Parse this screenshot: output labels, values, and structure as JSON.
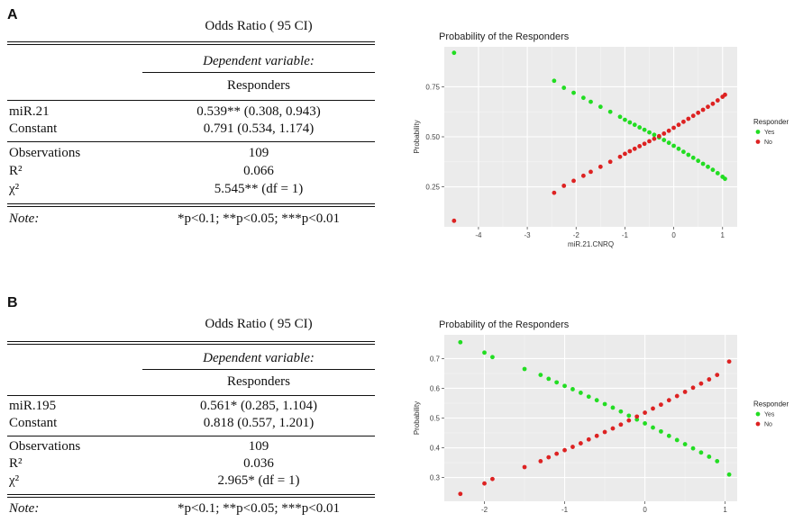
{
  "panels": [
    {
      "label": "A",
      "table": {
        "title": "Odds Ratio ( 95 CI)",
        "dependent_label": "Dependent variable:",
        "dependent_name": "Responders",
        "rows": [
          {
            "label": "miR.21",
            "value": "0.539** (0.308, 0.943)"
          },
          {
            "label": "Constant",
            "value": "0.791 (0.534, 1.174)"
          },
          {
            "label": "Observations",
            "value": "109"
          },
          {
            "label": "R²",
            "value": "0.066"
          },
          {
            "label": "χ²",
            "value": "5.545** (df = 1)"
          }
        ],
        "note_label": "Note:",
        "note_text": "*p<0.1; **p<0.05; ***p<0.01"
      }
    },
    {
      "label": "B",
      "table": {
        "title": "Odds Ratio ( 95 CI)",
        "dependent_label": "Dependent variable:",
        "dependent_name": "Responders",
        "rows": [
          {
            "label": "miR.195",
            "value": "0.561* (0.285, 1.104)"
          },
          {
            "label": "Constant",
            "value": "0.818 (0.557, 1.201)"
          },
          {
            "label": "Observations",
            "value": "109"
          },
          {
            "label": "R²",
            "value": "0.036"
          },
          {
            "label": "χ²",
            "value": "2.965* (df = 1)"
          }
        ],
        "note_label": "Note:",
        "note_text": "*p<0.1; **p<0.05; ***p<0.01"
      }
    }
  ],
  "chart_data": [
    {
      "type": "scatter",
      "title": "Probability of the Responders",
      "xlabel": "miR.21.CNRQ",
      "ylabel": "Probability",
      "xlim": [
        -4.7,
        1.3
      ],
      "ylim": [
        0.05,
        0.95
      ],
      "xticks": [
        -4,
        -3,
        -2,
        -1,
        0,
        1
      ],
      "yticks": [
        0.25,
        0.5,
        0.75
      ],
      "ytick_labels": [
        "0.25",
        "0.50",
        "0.75"
      ],
      "grid": true,
      "legend": {
        "title": "Responders",
        "position": "right",
        "items": [
          "Yes",
          "No"
        ]
      },
      "colors": {
        "Yes": "#22dd22",
        "No": "#dd2222",
        "panel_bg": "#ebebeb"
      },
      "series": [
        {
          "name": "Yes",
          "x": [
            -4.5,
            -2.45,
            -2.25,
            -2.05,
            -1.85,
            -1.7,
            -1.5,
            -1.3,
            -1.1,
            -1.0,
            -0.9,
            -0.8,
            -0.7,
            -0.6,
            -0.5,
            -0.4,
            -0.3,
            -0.2,
            -0.1,
            0.0,
            0.1,
            0.2,
            0.3,
            0.4,
            0.5,
            0.6,
            0.7,
            0.8,
            0.9,
            1.0,
            1.05
          ],
          "y": [
            0.92,
            0.78,
            0.745,
            0.72,
            0.695,
            0.675,
            0.65,
            0.625,
            0.6,
            0.585,
            0.572,
            0.56,
            0.547,
            0.535,
            0.522,
            0.51,
            0.497,
            0.484,
            0.47,
            0.455,
            0.44,
            0.425,
            0.41,
            0.395,
            0.38,
            0.365,
            0.35,
            0.335,
            0.318,
            0.3,
            0.29
          ]
        },
        {
          "name": "No",
          "x": [
            -4.5,
            -2.45,
            -2.25,
            -2.05,
            -1.85,
            -1.7,
            -1.5,
            -1.3,
            -1.1,
            -1.0,
            -0.9,
            -0.8,
            -0.7,
            -0.6,
            -0.5,
            -0.4,
            -0.3,
            -0.2,
            -0.1,
            0.0,
            0.1,
            0.2,
            0.3,
            0.4,
            0.5,
            0.6,
            0.7,
            0.8,
            0.9,
            1.0,
            1.05
          ],
          "y": [
            0.08,
            0.22,
            0.255,
            0.28,
            0.305,
            0.325,
            0.35,
            0.375,
            0.4,
            0.415,
            0.428,
            0.44,
            0.453,
            0.465,
            0.478,
            0.49,
            0.503,
            0.516,
            0.53,
            0.545,
            0.56,
            0.575,
            0.59,
            0.605,
            0.62,
            0.635,
            0.65,
            0.665,
            0.682,
            0.7,
            0.71
          ]
        }
      ]
    },
    {
      "type": "scatter",
      "title": "Probability of the Responders",
      "xlabel": "",
      "ylabel": "Probability",
      "xlim": [
        -2.5,
        1.15
      ],
      "ylim": [
        0.22,
        0.78
      ],
      "xticks": [
        -2,
        -1,
        0,
        1
      ],
      "yticks": [
        0.3,
        0.4,
        0.5,
        0.6,
        0.7
      ],
      "ytick_labels": [
        "0.3",
        "0.4",
        "0.5",
        "0.6",
        "0.7"
      ],
      "grid": true,
      "legend": {
        "title": "Responders",
        "position": "right",
        "items": [
          "Yes",
          "No"
        ]
      },
      "colors": {
        "Yes": "#22dd22",
        "No": "#dd2222",
        "panel_bg": "#ebebeb"
      },
      "series": [
        {
          "name": "Yes",
          "x": [
            -2.3,
            -2.0,
            -1.9,
            -1.5,
            -1.3,
            -1.2,
            -1.1,
            -1.0,
            -0.9,
            -0.8,
            -0.7,
            -0.6,
            -0.5,
            -0.4,
            -0.3,
            -0.2,
            -0.1,
            0.0,
            0.1,
            0.2,
            0.3,
            0.4,
            0.5,
            0.6,
            0.7,
            0.8,
            0.9,
            1.05
          ],
          "y": [
            0.755,
            0.72,
            0.705,
            0.665,
            0.645,
            0.632,
            0.62,
            0.608,
            0.597,
            0.585,
            0.572,
            0.56,
            0.547,
            0.535,
            0.522,
            0.508,
            0.495,
            0.482,
            0.468,
            0.455,
            0.44,
            0.426,
            0.412,
            0.398,
            0.384,
            0.37,
            0.355,
            0.31
          ]
        },
        {
          "name": "No",
          "x": [
            -2.3,
            -2.0,
            -1.9,
            -1.5,
            -1.3,
            -1.2,
            -1.1,
            -1.0,
            -0.9,
            -0.8,
            -0.7,
            -0.6,
            -0.5,
            -0.4,
            -0.3,
            -0.2,
            -0.1,
            0.0,
            0.1,
            0.2,
            0.3,
            0.4,
            0.5,
            0.6,
            0.7,
            0.8,
            0.9,
            1.05
          ],
          "y": [
            0.245,
            0.28,
            0.295,
            0.335,
            0.355,
            0.368,
            0.38,
            0.392,
            0.403,
            0.415,
            0.428,
            0.44,
            0.453,
            0.465,
            0.478,
            0.492,
            0.505,
            0.518,
            0.532,
            0.545,
            0.56,
            0.574,
            0.588,
            0.602,
            0.616,
            0.63,
            0.645,
            0.69
          ]
        }
      ]
    }
  ]
}
